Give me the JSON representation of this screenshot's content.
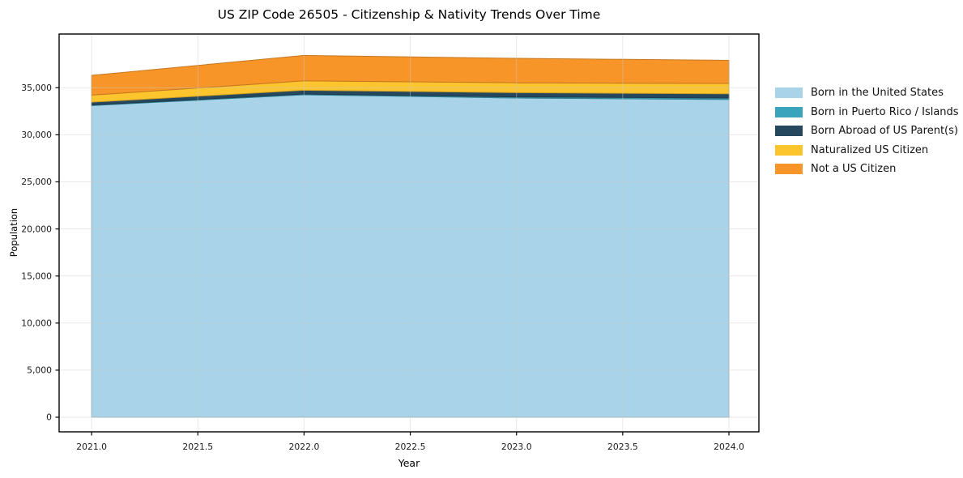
{
  "title": "US ZIP Code 26505 - Citizenship & Nativity Trends Over Time",
  "chart_data": {
    "type": "area",
    "stacked": true,
    "title": "US ZIP Code 26505 - Citizenship & Nativity Trends Over Time",
    "xlabel": "Year",
    "ylabel": "Population",
    "x": [
      2021,
      2022,
      2023,
      2024
    ],
    "series": [
      {
        "name": "Born in the United States",
        "color": "#a8d3e8",
        "values": [
          33100,
          34250,
          33900,
          33750
        ]
      },
      {
        "name": "Born in Puerto Rico / Islands",
        "color": "#3aa4bd",
        "values": [
          60,
          80,
          120,
          150
        ]
      },
      {
        "name": "Born Abroad of US Parent(s)",
        "color": "#25485e",
        "values": [
          300,
          400,
          450,
          450
        ]
      },
      {
        "name": "Naturalized US Citizen",
        "color": "#fcc42d",
        "values": [
          750,
          1000,
          1050,
          1100
        ]
      },
      {
        "name": "Not a US Citizen",
        "color": "#f79528",
        "values": [
          2100,
          2700,
          2600,
          2450
        ]
      }
    ],
    "totals": [
      36310,
      38430,
      38120,
      37900
    ],
    "x_tick_labels": [
      "2021.0",
      "2021.5",
      "2022.0",
      "2022.5",
      "2023.0",
      "2023.5",
      "2024.0"
    ],
    "x_tick_values": [
      2021,
      2021.5,
      2022,
      2022.5,
      2023,
      2023.5,
      2024
    ],
    "y_tick_labels": [
      "0",
      "5,000",
      "10,000",
      "15,000",
      "20,000",
      "25,000",
      "30,000",
      "35,000"
    ],
    "y_tick_values": [
      0,
      5000,
      10000,
      15000,
      20000,
      25000,
      30000,
      35000
    ],
    "xlim": [
      2020.847,
      2024.141
    ],
    "ylim": [
      -1550,
      40700
    ],
    "grid": true,
    "grid_color": "#cccccc",
    "spine_color": "#000000",
    "background": "#ffffff",
    "legend_position": "outside-right"
  }
}
